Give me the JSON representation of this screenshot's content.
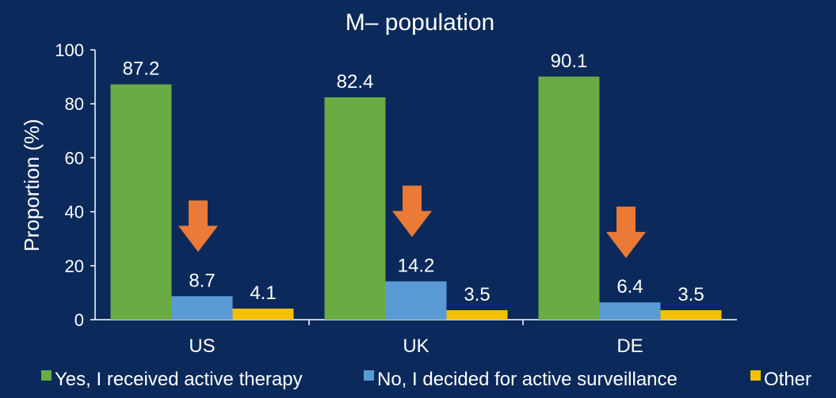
{
  "chart_data": {
    "type": "bar",
    "title": "M– population",
    "xlabel": "",
    "ylabel": "Proportion (%)",
    "ylim": [
      0,
      100
    ],
    "yticks": [
      0,
      20,
      40,
      60,
      80,
      100
    ],
    "grid": false,
    "legend_position": "bottom",
    "categories": [
      "US",
      "UK",
      "DE"
    ],
    "series": [
      {
        "name": "Yes, I received active therapy",
        "color": "#6aab43",
        "values": [
          87.2,
          82.4,
          90.1
        ],
        "labels": [
          "87.2",
          "82.4",
          "90.1"
        ]
      },
      {
        "name": "No, I decided for active surveillance",
        "color": "#5b9bd5",
        "values": [
          8.7,
          14.2,
          6.4
        ],
        "labels": [
          "8.7",
          "14.2",
          "6.4"
        ]
      },
      {
        "name": "Other",
        "color": "#f5c000",
        "values": [
          4.1,
          3.5,
          3.5
        ],
        "labels": [
          "4.1",
          "3.5",
          "3.5"
        ]
      }
    ],
    "annotations": {
      "type": "down-arrow",
      "color": "#ea7a35",
      "target_series": 1
    },
    "background": "#0b2a5b",
    "text_color": "#ffffff"
  }
}
